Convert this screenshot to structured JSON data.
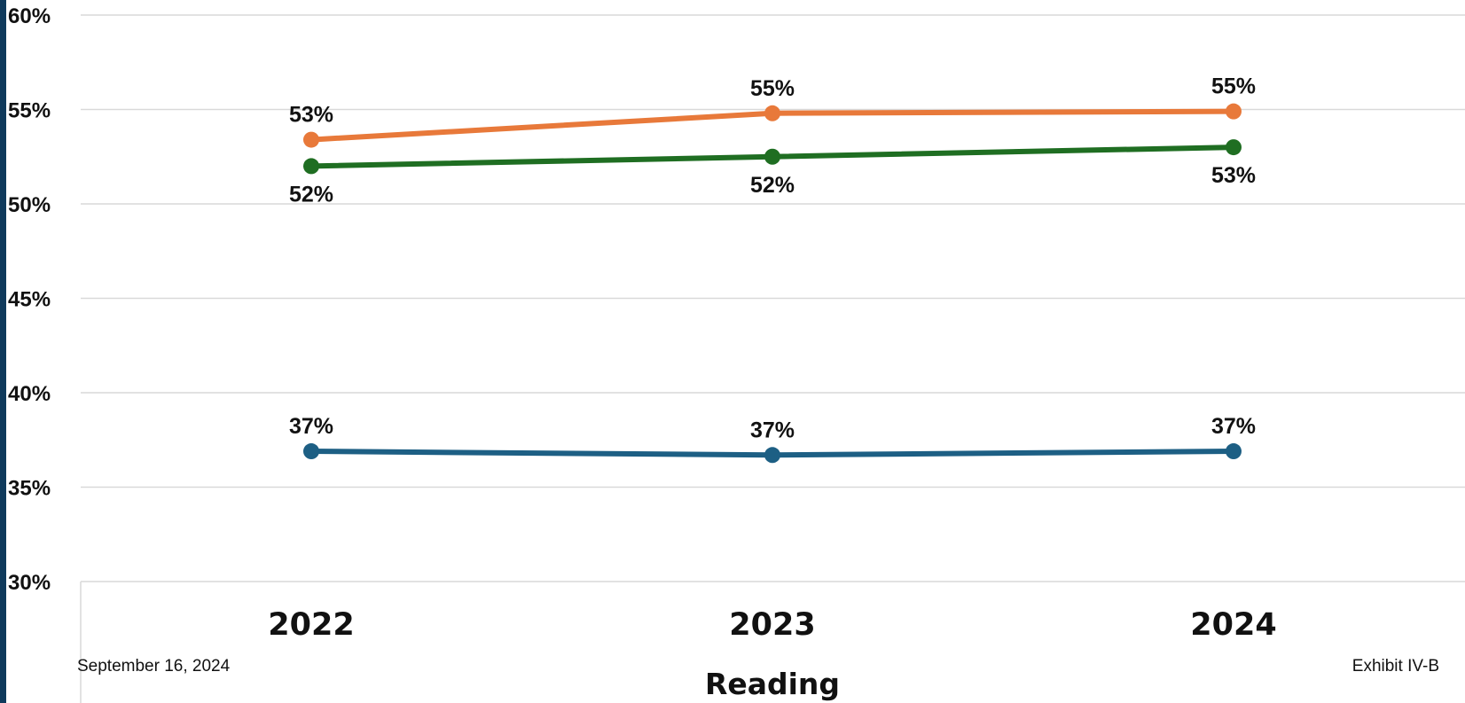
{
  "footer": {
    "date": "September 16, 2024",
    "exhibit": "Exhibit IV-B"
  },
  "colors": {
    "left_bar": "#0f3a5c",
    "grid": "#d9d9d9"
  },
  "chart_data": {
    "type": "line",
    "title": "",
    "xlabel": "Reading",
    "ylabel": "",
    "categories": [
      "2022",
      "2023",
      "2024"
    ],
    "ylim": [
      30,
      60
    ],
    "yticks": [
      30,
      35,
      40,
      45,
      50,
      55,
      60
    ],
    "ytick_labels": [
      "30%",
      "35%",
      "40%",
      "45%",
      "50%",
      "55%",
      "60%"
    ],
    "grid": true,
    "series": [
      {
        "color": "#e8793a",
        "values": [
          53.4,
          54.8,
          54.9
        ],
        "labels": [
          "53%",
          "55%",
          "55%"
        ],
        "label_position": "above"
      },
      {
        "color": "#1f6e22",
        "values": [
          52.0,
          52.5,
          53.0
        ],
        "labels": [
          "52%",
          "52%",
          "53%"
        ],
        "label_position": "below"
      },
      {
        "color": "#1d5f84",
        "values": [
          36.9,
          36.7,
          36.9
        ],
        "labels": [
          "37%",
          "37%",
          "37%"
        ],
        "label_position": "above"
      }
    ]
  }
}
